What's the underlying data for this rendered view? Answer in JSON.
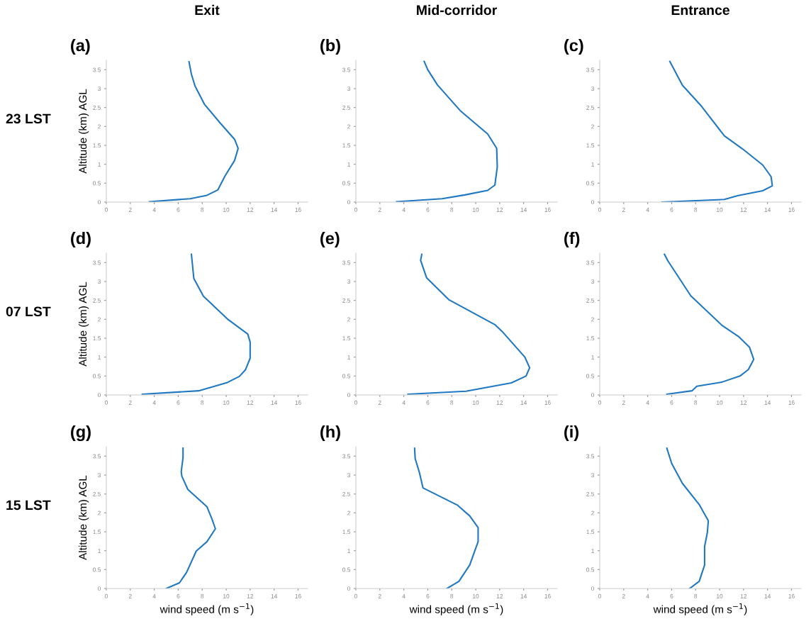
{
  "chart_data": [
    {
      "type": "line",
      "title": "(a)",
      "subtitle": "Exit",
      "annotations": [
        "23 LST"
      ],
      "ylabel": "Altitude (km) AGL",
      "xlim": [
        0,
        16.8
      ],
      "ylim": [
        0,
        3.75
      ],
      "xticks": [
        0,
        2,
        4,
        6,
        8,
        10,
        12,
        14,
        16
      ],
      "yticks": [
        0,
        0.5,
        1,
        1.5,
        2,
        2.5,
        3,
        3.5
      ],
      "grid": false,
      "series": [
        {
          "color": "#1f78c1",
          "x": [
            3.6,
            7.0,
            8.4,
            9.3,
            9.9,
            10.7,
            11.0,
            10.7,
            9.5,
            8.2,
            7.4,
            7.1,
            6.9
          ],
          "values": [
            0.01,
            0.09,
            0.18,
            0.32,
            0.69,
            1.1,
            1.42,
            1.66,
            2.09,
            2.58,
            3.07,
            3.38,
            3.71
          ]
        }
      ]
    },
    {
      "type": "line",
      "title": "(b)",
      "subtitle": "Mid-corridor",
      "xlim": [
        0,
        16.8
      ],
      "ylim": [
        0,
        3.75
      ],
      "xticks": [
        0,
        2,
        4,
        6,
        8,
        10,
        12,
        14,
        16
      ],
      "yticks": [
        0,
        0.5,
        1,
        1.5,
        2,
        2.5,
        3,
        3.5
      ],
      "grid": false,
      "series": [
        {
          "color": "#1f78c1",
          "x": [
            3.4,
            7.2,
            9.1,
            11.0,
            11.6,
            11.8,
            11.75,
            11.0,
            8.7,
            6.8,
            6.0,
            5.7
          ],
          "values": [
            0.01,
            0.09,
            0.19,
            0.31,
            0.45,
            0.93,
            1.42,
            1.8,
            2.42,
            3.1,
            3.5,
            3.72
          ]
        }
      ]
    },
    {
      "type": "line",
      "title": "(c)",
      "subtitle": "Entrance",
      "xlim": [
        0,
        16.8
      ],
      "ylim": [
        0,
        3.75
      ],
      "xticks": [
        0,
        2,
        4,
        6,
        8,
        10,
        12,
        14,
        16
      ],
      "yticks": [
        0,
        0.5,
        1,
        1.5,
        2,
        2.5,
        3,
        3.5
      ],
      "grid": false,
      "series": [
        {
          "color": "#1f78c1",
          "x": [
            5.2,
            10.4,
            11.5,
            13.6,
            14.4,
            14.3,
            13.6,
            11.9,
            10.4,
            8.5,
            6.9,
            5.85
          ],
          "values": [
            0.0,
            0.07,
            0.17,
            0.3,
            0.43,
            0.67,
            0.98,
            1.41,
            1.75,
            2.53,
            3.09,
            3.72
          ]
        }
      ]
    },
    {
      "type": "line",
      "title": "(d)",
      "annotations": [
        "07 LST"
      ],
      "ylabel": "Altitude (km) AGL",
      "xlim": [
        0,
        16.8
      ],
      "ylim": [
        0,
        3.75
      ],
      "xticks": [
        0,
        2,
        4,
        6,
        8,
        10,
        12,
        14,
        16
      ],
      "yticks": [
        0,
        0.5,
        1,
        1.5,
        2,
        2.5,
        3,
        3.5
      ],
      "grid": false,
      "series": [
        {
          "color": "#1f78c1",
          "x": [
            3.0,
            7.7,
            10.1,
            11.1,
            11.6,
            12.0,
            12.0,
            11.8,
            10.1,
            8.1,
            7.3,
            7.1
          ],
          "values": [
            0.02,
            0.11,
            0.33,
            0.49,
            0.66,
            0.97,
            1.4,
            1.61,
            2.01,
            2.61,
            3.08,
            3.72
          ]
        }
      ]
    },
    {
      "type": "line",
      "title": "(e)",
      "xlim": [
        0,
        16.8
      ],
      "ylim": [
        0,
        3.75
      ],
      "xticks": [
        0,
        2,
        4,
        6,
        8,
        10,
        12,
        14,
        16
      ],
      "yticks": [
        0,
        0.5,
        1,
        1.5,
        2,
        2.5,
        3,
        3.5
      ],
      "grid": false,
      "series": [
        {
          "color": "#1f78c1",
          "x": [
            4.35,
            9.2,
            12.97,
            14.2,
            14.5,
            14.1,
            12.2,
            11.6,
            7.75,
            5.9,
            5.4,
            5.5
          ],
          "values": [
            0.02,
            0.1,
            0.32,
            0.5,
            0.72,
            1.0,
            1.68,
            1.86,
            2.52,
            3.1,
            3.56,
            3.72
          ]
        }
      ]
    },
    {
      "type": "line",
      "title": "(f)",
      "xlim": [
        0,
        16.8
      ],
      "ylim": [
        0,
        3.75
      ],
      "xticks": [
        0,
        2,
        4,
        6,
        8,
        10,
        12,
        14,
        16
      ],
      "yticks": [
        0,
        0.5,
        1,
        1.5,
        2,
        2.5,
        3,
        3.5
      ],
      "grid": false,
      "series": [
        {
          "color": "#1f78c1",
          "x": [
            5.6,
            7.7,
            8.1,
            10.2,
            11.7,
            12.4,
            12.85,
            12.5,
            11.6,
            10.2,
            7.6,
            5.7,
            5.4
          ],
          "values": [
            0.02,
            0.11,
            0.23,
            0.34,
            0.5,
            0.67,
            0.94,
            1.26,
            1.54,
            1.84,
            2.62,
            3.54,
            3.72
          ]
        }
      ]
    },
    {
      "type": "line",
      "title": "(g)",
      "annotations": [
        "15 LST"
      ],
      "ylabel": "Altitude (km) AGL",
      "xlabel": "wind speed (m s$^{−1}$)",
      "xlim": [
        0,
        16.8
      ],
      "ylim": [
        0,
        3.75
      ],
      "xticks": [
        0,
        2,
        4,
        6,
        8,
        10,
        12,
        14,
        16
      ],
      "yticks": [
        0,
        0.5,
        1,
        1.5,
        2,
        2.5,
        3,
        3.5
      ],
      "grid": false,
      "series": [
        {
          "color": "#1f78c1",
          "x": [
            5.0,
            6.1,
            6.7,
            7.5,
            8.4,
            9.1,
            8.8,
            8.4,
            6.8,
            6.3,
            6.25,
            6.4,
            6.4
          ],
          "values": [
            0.0,
            0.15,
            0.43,
            0.99,
            1.24,
            1.58,
            1.85,
            2.16,
            2.62,
            2.97,
            3.09,
            3.46,
            3.71
          ]
        }
      ]
    },
    {
      "type": "line",
      "title": "(h)",
      "xlabel": "wind speed (m s$^{−1}$)",
      "xlim": [
        0,
        16.8
      ],
      "ylim": [
        0,
        3.75
      ],
      "xticks": [
        0,
        2,
        4,
        6,
        8,
        10,
        12,
        14,
        16
      ],
      "yticks": [
        0,
        0.5,
        1,
        1.5,
        2,
        2.5,
        3,
        3.5
      ],
      "grid": false,
      "series": [
        {
          "color": "#1f78c1",
          "x": [
            7.6,
            8.6,
            9.5,
            10.2,
            10.2,
            9.5,
            8.5,
            5.6,
            5.3,
            4.95,
            4.9
          ],
          "values": [
            0.0,
            0.19,
            0.62,
            1.24,
            1.61,
            1.92,
            2.2,
            2.66,
            3.07,
            3.43,
            3.71
          ]
        }
      ]
    },
    {
      "type": "line",
      "title": "(i)",
      "xlabel": "wind speed (m s$^{−1}$)",
      "xlim": [
        0,
        16.8
      ],
      "ylim": [
        0,
        3.75
      ],
      "xticks": [
        0,
        2,
        4,
        6,
        8,
        10,
        12,
        14,
        16
      ],
      "yticks": [
        0,
        0.5,
        1,
        1.5,
        2,
        2.5,
        3,
        3.5
      ],
      "grid": false,
      "series": [
        {
          "color": "#1f78c1",
          "x": [
            7.5,
            8.3,
            8.75,
            8.75,
            8.98,
            9.06,
            8.3,
            6.9,
            6.0,
            5.6
          ],
          "values": [
            0.0,
            0.19,
            0.62,
            1.11,
            1.48,
            1.79,
            2.22,
            2.78,
            3.31,
            3.71
          ]
        }
      ]
    }
  ]
}
